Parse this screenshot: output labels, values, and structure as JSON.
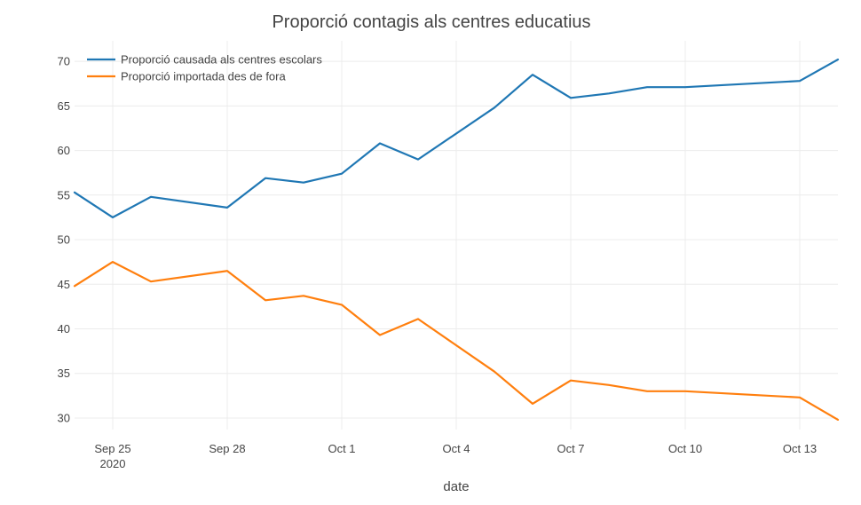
{
  "chart_data": {
    "type": "line",
    "title": "Proporció contagis als centres educatius",
    "xlabel": "date",
    "ylabel": "",
    "x_ticks": [
      {
        "date": "2020-09-25",
        "label": "Sep 25",
        "sublabel": "2020"
      },
      {
        "date": "2020-09-28",
        "label": "Sep 28"
      },
      {
        "date": "2020-10-01",
        "label": "Oct 1"
      },
      {
        "date": "2020-10-04",
        "label": "Oct 4"
      },
      {
        "date": "2020-10-07",
        "label": "Oct 7"
      },
      {
        "date": "2020-10-10",
        "label": "Oct 10"
      },
      {
        "date": "2020-10-13",
        "label": "Oct 13"
      }
    ],
    "y_ticks": [
      30,
      35,
      40,
      45,
      50,
      55,
      60,
      65,
      70
    ],
    "xlim": [
      "2020-09-24",
      "2020-10-14"
    ],
    "ylim": [
      28.7,
      72.3
    ],
    "grid": true,
    "legend_position": "top-left",
    "x": [
      "2020-09-24",
      "2020-09-25",
      "2020-09-26",
      "2020-09-28",
      "2020-09-29",
      "2020-09-30",
      "2020-10-01",
      "2020-10-02",
      "2020-10-03",
      "2020-10-05",
      "2020-10-06",
      "2020-10-07",
      "2020-10-08",
      "2020-10-09",
      "2020-10-10",
      "2020-10-13",
      "2020-10-14"
    ],
    "series": [
      {
        "name": "Proporció causada als centres escolars",
        "color": "#1f77b4",
        "values": [
          55.3,
          52.5,
          54.8,
          53.6,
          56.9,
          56.4,
          57.4,
          60.8,
          59.0,
          64.8,
          68.5,
          65.9,
          66.4,
          67.1,
          67.1,
          67.8,
          70.2
        ]
      },
      {
        "name": "Proporció importada des de fora",
        "color": "#ff7f0e",
        "values": [
          44.8,
          47.5,
          45.3,
          46.5,
          43.2,
          43.7,
          42.7,
          39.3,
          41.1,
          35.2,
          31.6,
          34.2,
          33.7,
          33.0,
          33.0,
          32.3,
          29.8
        ]
      }
    ]
  }
}
